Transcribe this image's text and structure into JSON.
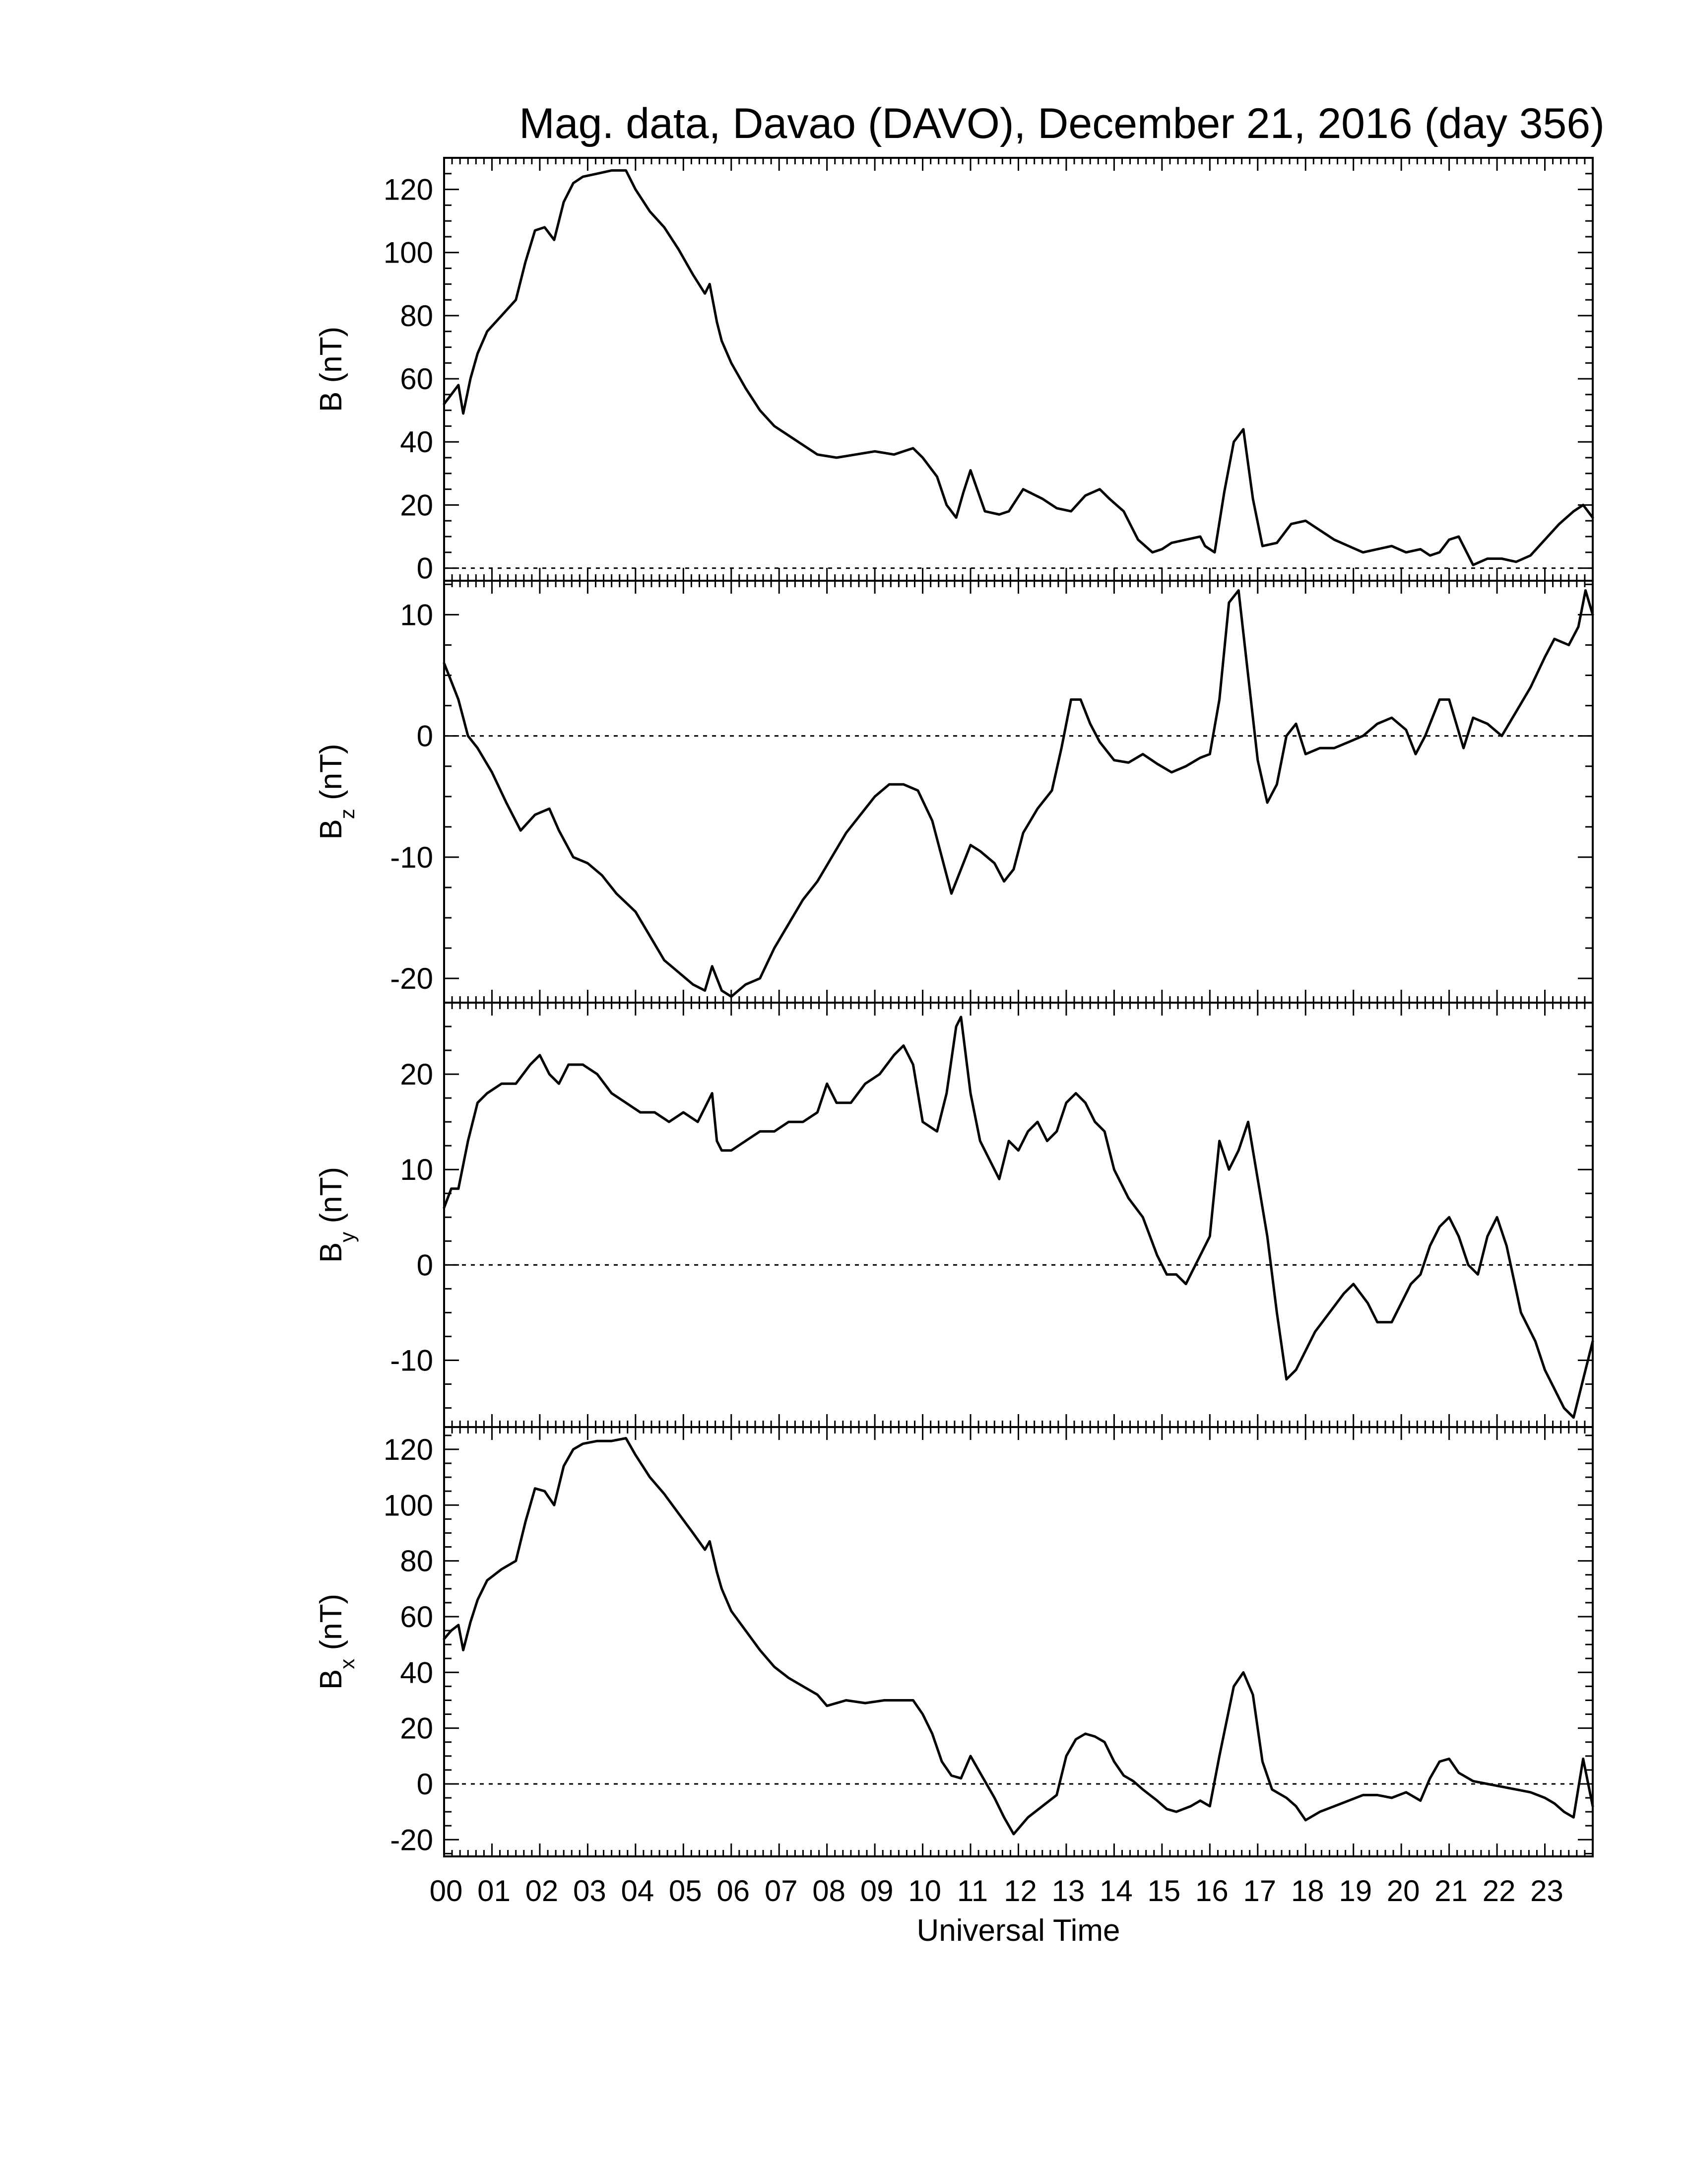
{
  "chart_data": {
    "type": "line",
    "title": "Mag. data, Davao (DAVO), December 21, 2016 (day 356)",
    "xlabel": "Universal Time",
    "x_unit": "hours UT",
    "xlim": [
      0,
      24
    ],
    "x_tick_labels": [
      "00",
      "01",
      "02",
      "03",
      "04",
      "05",
      "06",
      "07",
      "08",
      "09",
      "10",
      "11",
      "12",
      "13",
      "14",
      "15",
      "16",
      "17",
      "18",
      "19",
      "20",
      "21",
      "22",
      "23"
    ],
    "x_ticks": [
      0,
      1,
      2,
      3,
      4,
      5,
      6,
      7,
      8,
      9,
      10,
      11,
      12,
      13,
      14,
      15,
      16,
      17,
      18,
      19,
      20,
      21,
      22,
      23
    ],
    "zero_line": "dotted",
    "panels": [
      {
        "name": "B",
        "ylabel_main": "B",
        "ylabel_sub": "",
        "ylabel_unit": "(nT)",
        "ylim": [
          -4,
          130
        ],
        "yticks": [
          0,
          20,
          40,
          60,
          80,
          100,
          120
        ],
        "x": [
          0,
          0.15,
          0.3,
          0.4,
          0.55,
          0.7,
          0.9,
          1.2,
          1.5,
          1.7,
          1.9,
          2.1,
          2.3,
          2.5,
          2.7,
          2.9,
          3.2,
          3.5,
          3.8,
          4.0,
          4.3,
          4.6,
          4.9,
          5.2,
          5.45,
          5.55,
          5.7,
          5.8,
          6.0,
          6.3,
          6.6,
          6.9,
          7.2,
          7.5,
          7.8,
          8.2,
          8.6,
          9.0,
          9.4,
          9.6,
          9.8,
          10.0,
          10.3,
          10.5,
          10.7,
          10.85,
          11.0,
          11.3,
          11.6,
          11.8,
          12.1,
          12.5,
          12.8,
          13.1,
          13.4,
          13.7,
          13.9,
          14.2,
          14.5,
          14.8,
          15.0,
          15.2,
          15.5,
          15.8,
          15.9,
          16.1,
          16.3,
          16.5,
          16.7,
          16.9,
          17.1,
          17.4,
          17.7,
          18.0,
          18.3,
          18.6,
          18.9,
          19.2,
          19.5,
          19.8,
          20.1,
          20.4,
          20.6,
          20.8,
          21.0,
          21.2,
          21.5,
          21.8,
          22.1,
          22.4,
          22.7,
          23.0,
          23.3,
          23.6,
          23.8,
          24.0
        ],
        "y": [
          52,
          55,
          58,
          49,
          60,
          68,
          75,
          80,
          85,
          97,
          107,
          108,
          104,
          116,
          122,
          124,
          125,
          126,
          126,
          120,
          113,
          108,
          101,
          93,
          87,
          90,
          78,
          72,
          65,
          57,
          50,
          45,
          42,
          39,
          36,
          35,
          36,
          37,
          36,
          37,
          38,
          35,
          29,
          20,
          16,
          24,
          31,
          18,
          17,
          18,
          25,
          22,
          19,
          18,
          23,
          25,
          22,
          18,
          9,
          5,
          6,
          8,
          9,
          10,
          7,
          5,
          24,
          40,
          44,
          22,
          7,
          8,
          14,
          15,
          12,
          9,
          7,
          5,
          6,
          7,
          5,
          6,
          4,
          5,
          9,
          10,
          1,
          3,
          3,
          2,
          4,
          9,
          14,
          18,
          20,
          16
        ]
      },
      {
        "name": "Bz",
        "ylabel_main": "B",
        "ylabel_sub": "z",
        "ylabel_unit": "(nT)",
        "ylim": [
          -22,
          12.8
        ],
        "yticks": [
          -20,
          -10,
          0,
          10
        ],
        "x": [
          0,
          0.15,
          0.3,
          0.5,
          0.7,
          1.0,
          1.3,
          1.6,
          1.9,
          2.2,
          2.4,
          2.7,
          3.0,
          3.3,
          3.6,
          4.0,
          4.3,
          4.6,
          4.9,
          5.2,
          5.45,
          5.6,
          5.8,
          6.0,
          6.3,
          6.6,
          6.9,
          7.2,
          7.5,
          7.8,
          8.1,
          8.4,
          8.7,
          9.0,
          9.3,
          9.6,
          9.9,
          10.2,
          10.4,
          10.6,
          10.8,
          11.0,
          11.2,
          11.5,
          11.7,
          11.9,
          12.1,
          12.4,
          12.7,
          12.9,
          13.1,
          13.3,
          13.5,
          13.7,
          14.0,
          14.3,
          14.6,
          14.9,
          15.2,
          15.5,
          15.8,
          16.0,
          16.2,
          16.4,
          16.6,
          16.8,
          17.0,
          17.2,
          17.4,
          17.6,
          17.8,
          18.0,
          18.3,
          18.6,
          18.9,
          19.2,
          19.5,
          19.8,
          20.1,
          20.3,
          20.5,
          20.8,
          21.0,
          21.3,
          21.5,
          21.8,
          22.1,
          22.4,
          22.7,
          23.0,
          23.2,
          23.5,
          23.7,
          23.85,
          24.0
        ],
        "y": [
          6,
          4.5,
          3,
          0,
          -1,
          -3,
          -5.5,
          -7.8,
          -6.5,
          -6,
          -7.8,
          -10,
          -10.5,
          -11.5,
          -13,
          -14.5,
          -16.5,
          -18.5,
          -19.5,
          -20.5,
          -21,
          -19,
          -21,
          -21.5,
          -20.5,
          -20,
          -17.5,
          -15.5,
          -13.5,
          -12,
          -10,
          -8,
          -6.5,
          -5,
          -4,
          -4,
          -4.5,
          -7,
          -10,
          -13,
          -11,
          -9,
          -9.5,
          -10.5,
          -12,
          -11,
          -8,
          -6,
          -4.5,
          -1,
          3,
          3,
          1,
          -0.5,
          -2,
          -2.2,
          -1.5,
          -2.3,
          -3,
          -2.5,
          -1.8,
          -1.5,
          3,
          11,
          12,
          5,
          -2,
          -5.5,
          -4,
          0,
          1,
          -1.5,
          -1,
          -1,
          -0.5,
          0,
          1,
          1.5,
          0.5,
          -1.5,
          0,
          3,
          3,
          -1,
          1.5,
          1,
          0,
          2,
          4,
          6.5,
          8,
          7.5,
          9,
          12,
          10
        ]
      },
      {
        "name": "By",
        "ylabel_main": "B",
        "ylabel_sub": "y",
        "ylabel_unit": "(nT)",
        "ylim": [
          -17,
          27.5
        ],
        "yticks": [
          -10,
          0,
          10,
          20
        ],
        "x": [
          0,
          0.15,
          0.3,
          0.5,
          0.7,
          0.9,
          1.2,
          1.5,
          1.8,
          2.0,
          2.2,
          2.4,
          2.6,
          2.9,
          3.2,
          3.5,
          3.8,
          4.1,
          4.4,
          4.7,
          5.0,
          5.3,
          5.5,
          5.6,
          5.7,
          5.8,
          6.0,
          6.3,
          6.6,
          6.9,
          7.2,
          7.5,
          7.8,
          8.0,
          8.2,
          8.5,
          8.8,
          9.1,
          9.4,
          9.6,
          9.8,
          10.0,
          10.3,
          10.5,
          10.7,
          10.8,
          10.9,
          11.0,
          11.2,
          11.4,
          11.6,
          11.8,
          12.0,
          12.2,
          12.4,
          12.6,
          12.8,
          13.0,
          13.2,
          13.4,
          13.6,
          13.8,
          14.0,
          14.3,
          14.6,
          14.9,
          15.1,
          15.3,
          15.5,
          15.8,
          16.0,
          16.2,
          16.4,
          16.6,
          16.8,
          17.0,
          17.2,
          17.4,
          17.6,
          17.8,
          18.0,
          18.2,
          18.5,
          18.8,
          19.0,
          19.3,
          19.5,
          19.8,
          20.0,
          20.2,
          20.4,
          20.6,
          20.8,
          21.0,
          21.2,
          21.4,
          21.6,
          21.8,
          22.0,
          22.2,
          22.5,
          22.8,
          23.0,
          23.2,
          23.4,
          23.6,
          23.8,
          24.0
        ],
        "y": [
          6,
          8,
          8,
          13,
          17,
          18,
          19,
          19,
          21,
          22,
          20,
          19,
          21,
          21,
          20,
          18,
          17,
          16,
          16,
          15,
          16,
          15,
          17,
          18,
          13,
          12,
          12,
          13,
          14,
          14,
          15,
          15,
          16,
          19,
          17,
          17,
          19,
          20,
          22,
          23,
          21,
          15,
          14,
          18,
          25,
          26,
          22,
          18,
          13,
          11,
          9,
          13,
          12,
          14,
          15,
          13,
          14,
          17,
          18,
          17,
          15,
          14,
          10,
          7,
          5,
          1,
          -1,
          -1,
          -2,
          1,
          3,
          13,
          10,
          12,
          15,
          9,
          3,
          -5,
          -12,
          -11,
          -9,
          -7,
          -5,
          -3,
          -2,
          -4,
          -6,
          -6,
          -4,
          -2,
          -1,
          2,
          4,
          5,
          3,
          0,
          -1,
          3,
          5,
          2,
          -5,
          -8,
          -11,
          -13,
          -15,
          -16,
          -12,
          -8
        ]
      },
      {
        "name": "Bx",
        "ylabel_main": "B",
        "ylabel_sub": "x",
        "ylabel_unit": "(nT)",
        "ylim": [
          -26,
          128
        ],
        "yticks": [
          -20,
          0,
          20,
          40,
          60,
          80,
          100,
          120
        ],
        "x": [
          0,
          0.15,
          0.3,
          0.4,
          0.55,
          0.7,
          0.9,
          1.2,
          1.5,
          1.7,
          1.9,
          2.1,
          2.3,
          2.5,
          2.7,
          2.9,
          3.2,
          3.5,
          3.8,
          4.0,
          4.3,
          4.6,
          4.9,
          5.2,
          5.45,
          5.55,
          5.7,
          5.8,
          6.0,
          6.3,
          6.6,
          6.9,
          7.2,
          7.5,
          7.8,
          8.0,
          8.4,
          8.8,
          9.2,
          9.6,
          9.8,
          10.0,
          10.2,
          10.4,
          10.6,
          10.8,
          11.0,
          11.2,
          11.5,
          11.7,
          11.9,
          12.2,
          12.5,
          12.8,
          13.0,
          13.2,
          13.4,
          13.6,
          13.8,
          14.0,
          14.2,
          14.4,
          14.6,
          14.9,
          15.1,
          15.3,
          15.6,
          15.8,
          16.0,
          16.2,
          16.5,
          16.7,
          16.9,
          17.1,
          17.3,
          17.6,
          17.8,
          18.0,
          18.3,
          18.6,
          18.9,
          19.2,
          19.5,
          19.8,
          20.1,
          20.4,
          20.6,
          20.8,
          21.0,
          21.2,
          21.5,
          21.8,
          22.1,
          22.4,
          22.7,
          23.0,
          23.2,
          23.4,
          23.6,
          23.8,
          24.0
        ],
        "y": [
          52,
          55,
          57,
          48,
          58,
          66,
          73,
          77,
          80,
          94,
          106,
          105,
          100,
          114,
          120,
          122,
          123,
          123,
          124,
          118,
          110,
          104,
          97,
          90,
          84,
          87,
          76,
          70,
          62,
          55,
          48,
          42,
          38,
          35,
          32,
          28,
          30,
          29,
          30,
          30,
          30,
          25,
          18,
          8,
          3,
          2,
          10,
          4,
          -5,
          -12,
          -18,
          -12,
          -8,
          -4,
          10,
          16,
          18,
          17,
          15,
          8,
          3,
          1,
          -2,
          -6,
          -9,
          -10,
          -8,
          -6,
          -8,
          10,
          35,
          40,
          32,
          8,
          -2,
          -5,
          -8,
          -13,
          -10,
          -8,
          -6,
          -4,
          -4,
          -5,
          -3,
          -6,
          2,
          8,
          9,
          4,
          1,
          0,
          -1,
          -2,
          -3,
          -5,
          -7,
          -10,
          -12,
          9,
          -8
        ]
      }
    ]
  }
}
